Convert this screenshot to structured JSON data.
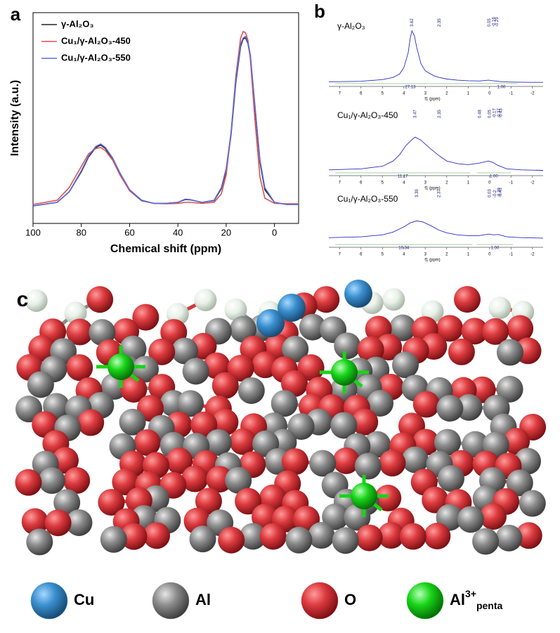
{
  "chart_data": [
    {
      "type": "line",
      "panel_label": "a",
      "x_label": "Chemical shift (ppm)",
      "y_label": "Intensity (a.u.)",
      "x": [
        100,
        90,
        85,
        80,
        77,
        74,
        72,
        70,
        67,
        64,
        60,
        55,
        50,
        45,
        40,
        37,
        35,
        30,
        25,
        22,
        20,
        18,
        16,
        14,
        13,
        12,
        11,
        10,
        8,
        6,
        4,
        0,
        -5,
        -10
      ],
      "xlim": [
        100,
        -10
      ],
      "xticks": [
        100,
        80,
        60,
        40,
        20,
        0
      ],
      "ylim": [
        0,
        1
      ],
      "legend": "upper left",
      "series": [
        {
          "name": "γ-Al₂O₃",
          "color": "#222222",
          "values": [
            0.083,
            0.1,
            0.15,
            0.245,
            0.315,
            0.36,
            0.372,
            0.355,
            0.305,
            0.235,
            0.155,
            0.108,
            0.095,
            0.095,
            0.1,
            0.113,
            0.112,
            0.1,
            0.108,
            0.165,
            0.25,
            0.42,
            0.67,
            0.84,
            0.875,
            0.88,
            0.855,
            0.79,
            0.54,
            0.29,
            0.16,
            0.1,
            0.09,
            0.09
          ]
        },
        {
          "name": "Cu₁/γ-Al₂O₃-450",
          "color": "#e0504a",
          "values": [
            0.09,
            0.11,
            0.17,
            0.27,
            0.33,
            0.355,
            0.36,
            0.345,
            0.3,
            0.23,
            0.155,
            0.11,
            0.095,
            0.093,
            0.095,
            0.1,
            0.1,
            0.095,
            0.1,
            0.14,
            0.23,
            0.43,
            0.7,
            0.88,
            0.91,
            0.905,
            0.87,
            0.78,
            0.48,
            0.22,
            0.12,
            0.095,
            0.093,
            0.093
          ]
        },
        {
          "name": "Cu₁/γ-Al₂O₃-550",
          "color": "#5a6ee0",
          "values": [
            0.083,
            0.1,
            0.15,
            0.25,
            0.32,
            0.365,
            0.377,
            0.36,
            0.31,
            0.24,
            0.16,
            0.11,
            0.095,
            0.095,
            0.1,
            0.115,
            0.113,
            0.1,
            0.11,
            0.17,
            0.26,
            0.43,
            0.68,
            0.85,
            0.88,
            0.887,
            0.86,
            0.8,
            0.55,
            0.3,
            0.17,
            0.1,
            0.09,
            0.09
          ]
        }
      ]
    },
    {
      "type": "line",
      "panel_label": "b",
      "title": "γ-Al₂O₃",
      "x_label": "f1 (ppm)",
      "x": [
        7.5,
        6,
        5,
        4.5,
        4.2,
        4,
        3.8,
        3.7,
        3.62,
        3.5,
        3.4,
        3.2,
        3,
        2.6,
        2.35,
        2,
        1.5,
        1,
        0.5,
        0.05,
        -0.16,
        -0.29,
        -0.6,
        -1,
        -2,
        -2.5
      ],
      "xlim": [
        7.5,
        -2.5
      ],
      "xticks": [
        7,
        6,
        5,
        4,
        3,
        2,
        1,
        0,
        -1,
        -2
      ],
      "ylim": [
        0,
        1
      ],
      "series": [
        {
          "color": "#2b2bc8",
          "values": [
            0.02,
            0.03,
            0.06,
            0.1,
            0.16,
            0.28,
            0.55,
            0.82,
            0.95,
            0.85,
            0.65,
            0.35,
            0.22,
            0.13,
            0.1,
            0.07,
            0.05,
            0.04,
            0.035,
            0.05,
            0.04,
            0.035,
            0.02,
            0.015,
            0.01,
            0.01
          ]
        }
      ],
      "peak_labels": [
        3.62,
        2.35,
        0.05,
        -0.16,
        -0.29
      ],
      "integrals": [
        {
          "range": [
            7.2,
            0.2
          ],
          "label": "27.13"
        },
        {
          "range": [
            0.2,
            -1.3
          ],
          "label": "1.00"
        }
      ]
    },
    {
      "type": "line",
      "title": "Cu₁/γ-Al₂O₃-450",
      "x_label": "f1 (ppm)",
      "x": [
        7.5,
        6,
        5,
        4.5,
        4.2,
        3.9,
        3.6,
        3.47,
        3.2,
        2.8,
        2.35,
        2,
        1.5,
        1,
        0.48,
        0.05,
        -0.17,
        -0.37,
        -0.8,
        -1.5,
        -2.5
      ],
      "xlim": [
        7.5,
        -2.5
      ],
      "xticks": [
        7,
        6,
        5,
        4,
        3,
        2,
        1,
        0,
        -1,
        -2
      ],
      "ylim": [
        0,
        1
      ],
      "series": [
        {
          "color": "#2b2bc8",
          "values": [
            0.03,
            0.05,
            0.1,
            0.2,
            0.32,
            0.5,
            0.62,
            0.66,
            0.6,
            0.45,
            0.3,
            0.2,
            0.15,
            0.13,
            0.16,
            0.2,
            0.17,
            0.12,
            0.05,
            0.03,
            0.02
          ]
        }
      ],
      "peak_labels": [
        3.47,
        2.35,
        0.48,
        0.05,
        -0.17,
        -0.37,
        -0.43
      ],
      "integrals": [
        {
          "range": [
            7.2,
            0.9
          ],
          "label": "11.17"
        },
        {
          "range": [
            0.6,
            -1.0
          ],
          "label": "1.00"
        }
      ]
    },
    {
      "type": "line",
      "title": "Cu₁/γ-Al₂O₃-550",
      "x_label": "f1 (ppm)",
      "x": [
        7.5,
        6,
        5,
        4.5,
        4,
        3.7,
        3.39,
        3.1,
        2.7,
        2.37,
        2,
        1.5,
        1,
        0.5,
        0.03,
        -0.2,
        -0.39,
        -0.8,
        -1.5,
        -2.5
      ],
      "xlim": [
        7.5,
        -2.5
      ],
      "xticks": [
        7,
        6,
        5,
        4,
        3,
        2,
        1,
        0,
        -1,
        -2
      ],
      "ylim": [
        0,
        1
      ],
      "series": [
        {
          "color": "#2b2bc8",
          "values": [
            0.03,
            0.05,
            0.1,
            0.17,
            0.3,
            0.4,
            0.45,
            0.42,
            0.32,
            0.22,
            0.15,
            0.1,
            0.08,
            0.08,
            0.12,
            0.1,
            0.11,
            0.05,
            0.03,
            0.02
          ]
        }
      ],
      "peak_labels": [
        3.39,
        2.37,
        0.03,
        -0.2,
        -0.39,
        -0.43
      ],
      "integrals": [
        {
          "range": [
            7.2,
            0.8
          ],
          "label": "10.34"
        },
        {
          "range": [
            0.6,
            -1.1
          ],
          "label": "1.00"
        }
      ]
    }
  ],
  "structure": {
    "panel_label": "c",
    "legend": [
      {
        "label": "Cu",
        "color": "#3a8fcf"
      },
      {
        "label": "Al",
        "color": "#8a8a8a"
      },
      {
        "label": "O",
        "color": "#d9353a"
      },
      {
        "label": "Al",
        "superscript": "3+",
        "subscript": "penta",
        "color": "#18d418"
      }
    ]
  }
}
